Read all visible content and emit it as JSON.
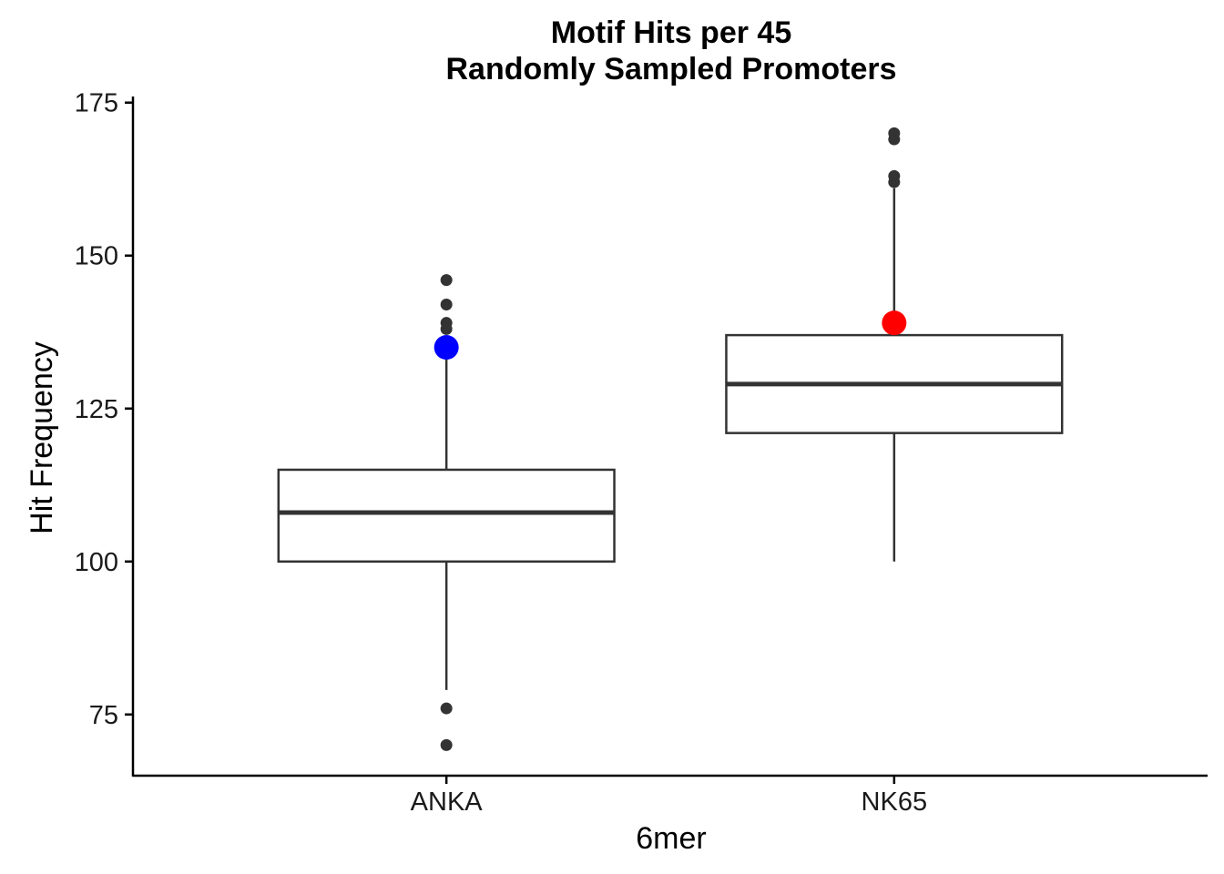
{
  "chart_data": {
    "type": "box",
    "title": [
      "Motif Hits per 45",
      "Randomly Sampled Promoters"
    ],
    "xlabel": "6mer",
    "ylabel": "Hit Frequency",
    "ylim": [
      65,
      176
    ],
    "yticks": [
      75,
      100,
      125,
      150,
      175
    ],
    "grid": false,
    "legend": "none",
    "categories": [
      "ANKA",
      "NK65"
    ],
    "boxes": [
      {
        "category": "ANKA",
        "whisker_low": 79,
        "q1": 100,
        "median": 108,
        "q3": 115,
        "whisker_high": 134,
        "outliers": [
          70,
          76,
          138,
          139,
          142,
          146
        ]
      },
      {
        "category": "NK65",
        "whisker_low": 100,
        "q1": 121,
        "median": 129,
        "q3": 137,
        "whisker_high": 161,
        "outliers": [
          162,
          163,
          169,
          170
        ]
      }
    ],
    "highlights": [
      {
        "category": "ANKA",
        "value": 135,
        "color": "#0000ff"
      },
      {
        "category": "NK65",
        "value": 139,
        "color": "#ff0000"
      }
    ]
  }
}
